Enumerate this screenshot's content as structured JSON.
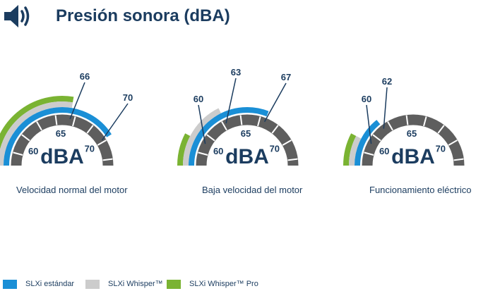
{
  "title": "Presión sonora (dBA)",
  "icon": "speaker-icon",
  "colors": {
    "standard": "#1a8fd6",
    "whisper": "#cccccc",
    "whisper_pro": "#7ab332",
    "track": "#5e5e5e",
    "text": "#1b3c5f"
  },
  "chart_data": {
    "type": "gauge",
    "unit": "dBA",
    "scale_ticks": [
      "60",
      "65",
      "70"
    ],
    "series": [
      {
        "name": "SLXi estándar",
        "color": "#1a8fd6"
      },
      {
        "name": "SLXi Whisper™",
        "color": "#cccccc"
      },
      {
        "name": "SLXi Whisper™ Pro",
        "color": "#7ab332"
      }
    ],
    "gauges": [
      {
        "label": "Velocidad normal del motor",
        "values": [
          70,
          66,
          66
        ]
      },
      {
        "label": "Baja velocidad del motor",
        "values": [
          67,
          63,
          60
        ]
      },
      {
        "label": "Funcionamiento eléctrico",
        "values": [
          62,
          60,
          60
        ]
      }
    ]
  }
}
